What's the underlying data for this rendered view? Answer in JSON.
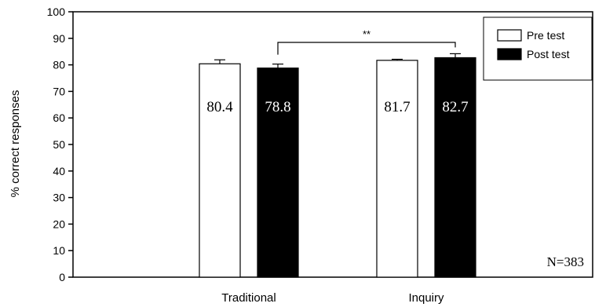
{
  "chart_data": {
    "type": "bar",
    "categories": [
      "Traditional",
      "Inquiry"
    ],
    "series": [
      {
        "name": "Pre test",
        "values": [
          80.4,
          81.7
        ],
        "errors": [
          1.5,
          0.4
        ],
        "color": "#ffffff"
      },
      {
        "name": "Post test",
        "values": [
          78.8,
          82.7
        ],
        "errors": [
          1.5,
          1.5
        ],
        "color": "#000000"
      }
    ],
    "data_labels": [
      [
        "80.4",
        "81.7"
      ],
      [
        "78.8",
        "82.7"
      ]
    ],
    "ylabel": "% correct responses",
    "ylim": [
      0,
      100
    ],
    "yticks": [
      0,
      10,
      20,
      30,
      40,
      50,
      60,
      70,
      80,
      90,
      100
    ],
    "grid": false,
    "legend": "top-right",
    "significance": {
      "label": "**",
      "between": [
        "Traditional Post test",
        "Inquiry Post test"
      ]
    },
    "annotation": "N=383"
  }
}
